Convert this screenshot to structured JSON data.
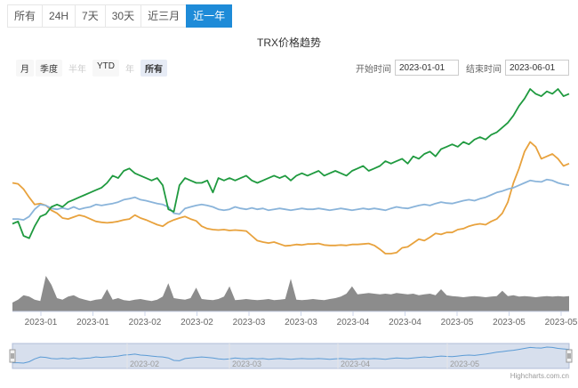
{
  "tabs": [
    {
      "label": "所有",
      "active": false
    },
    {
      "label": "24H",
      "active": false
    },
    {
      "label": "7天",
      "active": false
    },
    {
      "label": "30天",
      "active": false
    },
    {
      "label": "近三月",
      "active": false
    },
    {
      "label": "近一年",
      "active": true
    }
  ],
  "zoom_buttons": [
    {
      "label": "月",
      "state": "normal"
    },
    {
      "label": "季度",
      "state": "normal"
    },
    {
      "label": "半年",
      "state": "disabled"
    },
    {
      "label": "YTD",
      "state": "normal"
    },
    {
      "label": "年",
      "state": "disabled"
    },
    {
      "label": "所有",
      "state": "selected"
    }
  ],
  "range": {
    "from_label": "开始时间",
    "from_value": "2023-01-01",
    "to_label": "结束时间",
    "to_value": "2023-06-01"
  },
  "credit": "Highcharts.com.cn",
  "colors": {
    "accent": "#1e8bd8",
    "orange": "#e8a23d",
    "blue": "#8ab4da",
    "green": "#1f9a3f",
    "volume": "#8c8c8c",
    "navigator": "#c6d2e6"
  },
  "chart_data": {
    "type": "line",
    "title": "TRX价格趋势",
    "x_tick_labels": [
      "2023-01",
      "2023-01",
      "2023-02",
      "2023-02",
      "2023-03",
      "2023-03",
      "2023-04",
      "2023-04",
      "2023-05",
      "2023-05",
      "2023-05"
    ],
    "navigator_labels": [
      "2023-02",
      "2023-03",
      "2023-04",
      "2023-05"
    ],
    "series": [
      {
        "color": "#e8a23d",
        "values": [
          0.85,
          0.83,
          0.72,
          0.55,
          0.4,
          0.42,
          0.38,
          0.28,
          0.22,
          0.12,
          0.1,
          0.14,
          0.18,
          0.15,
          0.1,
          0.05,
          0.03,
          0.02,
          0.03,
          0.05,
          0.08,
          0.1,
          0.18,
          0.12,
          0.08,
          0.03,
          -0.02,
          -0.05,
          0.03,
          0.08,
          0.12,
          0.15,
          0.1,
          0.06,
          -0.05,
          -0.1,
          -0.12,
          -0.13,
          -0.12,
          -0.14,
          -0.13,
          -0.14,
          -0.15,
          -0.25,
          -0.35,
          -0.38,
          -0.4,
          -0.38,
          -0.42,
          -0.46,
          -0.45,
          -0.43,
          -0.44,
          -0.42,
          -0.42,
          -0.41,
          -0.44,
          -0.45,
          -0.45,
          -0.44,
          -0.45,
          -0.43,
          -0.43,
          -0.42,
          -0.41,
          -0.45,
          -0.53,
          -0.62,
          -0.62,
          -0.6,
          -0.5,
          -0.48,
          -0.4,
          -0.32,
          -0.35,
          -0.28,
          -0.2,
          -0.22,
          -0.18,
          -0.18,
          -0.12,
          -0.1,
          -0.05,
          -0.02,
          0.0,
          -0.02,
          0.05,
          0.1,
          0.22,
          0.45,
          0.85,
          1.15,
          1.5,
          1.7,
          1.6,
          1.35,
          1.4,
          1.45,
          1.35,
          1.2,
          1.25
        ]
      },
      {
        "color": "#8ab4da",
        "values": [
          0.1,
          0.1,
          0.08,
          0.15,
          0.3,
          0.4,
          0.38,
          0.32,
          0.3,
          0.33,
          0.3,
          0.35,
          0.3,
          0.33,
          0.35,
          0.4,
          0.38,
          0.4,
          0.42,
          0.45,
          0.5,
          0.52,
          0.55,
          0.5,
          0.48,
          0.45,
          0.42,
          0.4,
          0.35,
          0.22,
          0.2,
          0.32,
          0.35,
          0.38,
          0.4,
          0.38,
          0.35,
          0.3,
          0.28,
          0.3,
          0.35,
          0.32,
          0.3,
          0.33,
          0.3,
          0.32,
          0.28,
          0.3,
          0.32,
          0.3,
          0.28,
          0.3,
          0.32,
          0.3,
          0.3,
          0.32,
          0.3,
          0.28,
          0.3,
          0.32,
          0.3,
          0.28,
          0.3,
          0.32,
          0.3,
          0.32,
          0.3,
          0.28,
          0.32,
          0.35,
          0.33,
          0.32,
          0.35,
          0.38,
          0.4,
          0.38,
          0.42,
          0.45,
          0.43,
          0.42,
          0.45,
          0.48,
          0.5,
          0.48,
          0.52,
          0.55,
          0.6,
          0.65,
          0.68,
          0.72,
          0.75,
          0.8,
          0.85,
          0.9,
          0.88,
          0.87,
          0.92,
          0.9,
          0.85,
          0.82,
          0.8
        ]
      },
      {
        "color": "#1f9a3f",
        "values": [
          0.0,
          0.05,
          -0.25,
          -0.3,
          -0.05,
          0.15,
          0.2,
          0.35,
          0.4,
          0.35,
          0.45,
          0.5,
          0.55,
          0.6,
          0.65,
          0.7,
          0.75,
          0.85,
          1.0,
          0.95,
          1.1,
          1.15,
          1.05,
          1.0,
          0.95,
          0.9,
          0.95,
          0.8,
          0.3,
          0.25,
          0.8,
          0.95,
          0.9,
          0.85,
          0.85,
          0.9,
          0.65,
          0.95,
          0.9,
          0.95,
          0.9,
          0.95,
          1.0,
          0.9,
          0.85,
          0.9,
          0.95,
          1.0,
          0.95,
          1.0,
          0.9,
          1.0,
          1.05,
          1.0,
          1.05,
          1.1,
          1.0,
          1.05,
          1.1,
          1.05,
          1.0,
          1.1,
          1.15,
          1.2,
          1.1,
          1.15,
          1.2,
          1.3,
          1.25,
          1.3,
          1.35,
          1.25,
          1.4,
          1.35,
          1.45,
          1.5,
          1.4,
          1.55,
          1.6,
          1.65,
          1.6,
          1.7,
          1.65,
          1.75,
          1.8,
          1.75,
          1.85,
          1.9,
          2.0,
          2.1,
          2.25,
          2.45,
          2.6,
          2.8,
          2.7,
          2.65,
          2.75,
          2.7,
          2.8,
          2.65,
          2.7
        ]
      }
    ],
    "volume": [
      0.3,
      0.4,
      0.55,
      0.5,
      0.4,
      0.35,
      0.5,
      0.7,
      0.45,
      0.4,
      0.5,
      0.55,
      0.45,
      0.4,
      0.35,
      0.4,
      0.42,
      0.35,
      0.4,
      0.45,
      0.38,
      0.36,
      0.4,
      0.42,
      0.38,
      0.35,
      0.4,
      0.5,
      0.55,
      0.45,
      0.42,
      0.4,
      0.45,
      0.48,
      0.42,
      0.4,
      0.38,
      0.42,
      0.5,
      0.42,
      0.38,
      0.4,
      0.42,
      0.4,
      0.38,
      0.4,
      0.42,
      0.38,
      0.4,
      0.42,
      0.4,
      0.4,
      0.38,
      0.4,
      0.42,
      0.4,
      0.38,
      0.42,
      0.45,
      0.5,
      0.6,
      0.65,
      0.58,
      0.6,
      0.62,
      0.6,
      0.58,
      0.6,
      0.58,
      0.62,
      0.6,
      0.58,
      0.6,
      0.55,
      0.58,
      0.6,
      0.55,
      0.5,
      0.55,
      0.52,
      0.5,
      0.48,
      0.5,
      0.52,
      0.5,
      0.48,
      0.5,
      0.52,
      0.5,
      0.52,
      0.55,
      0.5,
      0.52,
      0.5,
      0.48,
      0.5,
      0.52,
      0.5,
      0.52,
      0.5,
      0.52
    ],
    "volume_spikes": [
      1.2,
      0.9,
      0.75,
      0.95,
      0.8,
      0.85,
      1.1,
      0.85,
      0.75,
      0.7
    ],
    "legend": null
  }
}
